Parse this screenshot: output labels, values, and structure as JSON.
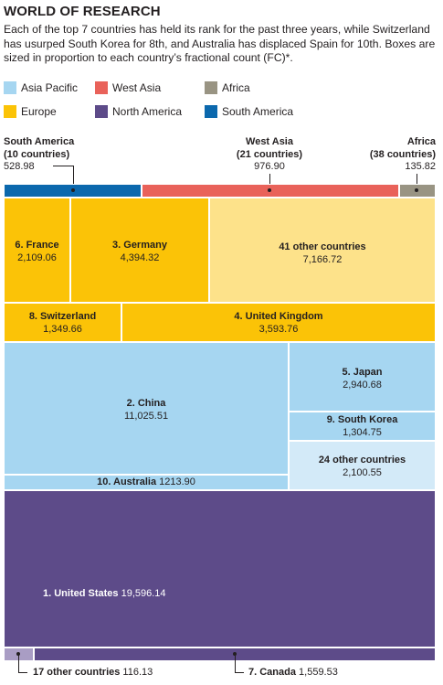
{
  "title": "WORLD OF RESEARCH",
  "subtitle": "Each of the top 7 countries has held its rank for the past three years, while Switzerland has usurped South Korea for 8th, and Australia has displaced Spain for 10th. Boxes are sized in proportion to each country’s fractional count (FC)*.",
  "colors": {
    "asia_pacific": "#a6d6f1",
    "asia_pacific_light": "#d3eaf8",
    "west_asia": "#e9625a",
    "africa": "#999483",
    "europe": "#fbc307",
    "europe_light": "#fde28a",
    "north_america": "#5d4b89",
    "north_america_light": "#a99dc4",
    "south_america": "#0b68ad"
  },
  "legend": [
    {
      "label": "Asia Pacific",
      "color": "#a6d6f1"
    },
    {
      "label": "West Asia",
      "color": "#e9625a"
    },
    {
      "label": "Africa",
      "color": "#999483"
    },
    {
      "label": "Europe",
      "color": "#fbc307"
    },
    {
      "label": "North America",
      "color": "#5d4b89"
    },
    {
      "label": "South America",
      "color": "#0b68ad"
    }
  ],
  "chart_data": {
    "type": "treemap",
    "unit": "fractional count (FC)",
    "top_bar": [
      {
        "region": "South America",
        "count_label": "(10 countries)",
        "value": 528.98,
        "value_text": "528.98"
      },
      {
        "region": "West Asia",
        "count_label": "(21 countries)",
        "value": 976.9,
        "value_text": "976.90"
      },
      {
        "region": "Africa",
        "count_label": "(38 countries)",
        "value": 135.82,
        "value_text": "135.82"
      }
    ],
    "europe": [
      {
        "name": "6. France",
        "value": 2109.06,
        "value_text": "2,109.06"
      },
      {
        "name": "3. Germany",
        "value": 4394.32,
        "value_text": "4,394.32"
      },
      {
        "name": "41 other countries",
        "value": 7166.72,
        "value_text": "7,166.72"
      },
      {
        "name": "8. Switzerland",
        "value": 1349.66,
        "value_text": "1,349.66"
      },
      {
        "name": "4. United Kingdom",
        "value": 3593.76,
        "value_text": "3,593.76"
      }
    ],
    "asia_pacific": [
      {
        "name": "2. China",
        "value": 11025.51,
        "value_text": "11,025.51"
      },
      {
        "name": "5. Japan",
        "value": 2940.68,
        "value_text": "2,940.68"
      },
      {
        "name": "9. South Korea",
        "value": 1304.75,
        "value_text": "1,304.75"
      },
      {
        "name": "24 other countries",
        "value": 2100.55,
        "value_text": "2,100.55"
      },
      {
        "name": "10. Australia",
        "value": 1213.9,
        "value_text": "1213.90"
      }
    ],
    "north_america": [
      {
        "name": "1. United States",
        "value": 19596.14,
        "value_text": "19,596.14"
      },
      {
        "name": "17 other countries",
        "value": 116.13,
        "value_text": "116.13"
      },
      {
        "name": "7. Canada",
        "value": 1559.53,
        "value_text": "1,559.53"
      }
    ]
  }
}
